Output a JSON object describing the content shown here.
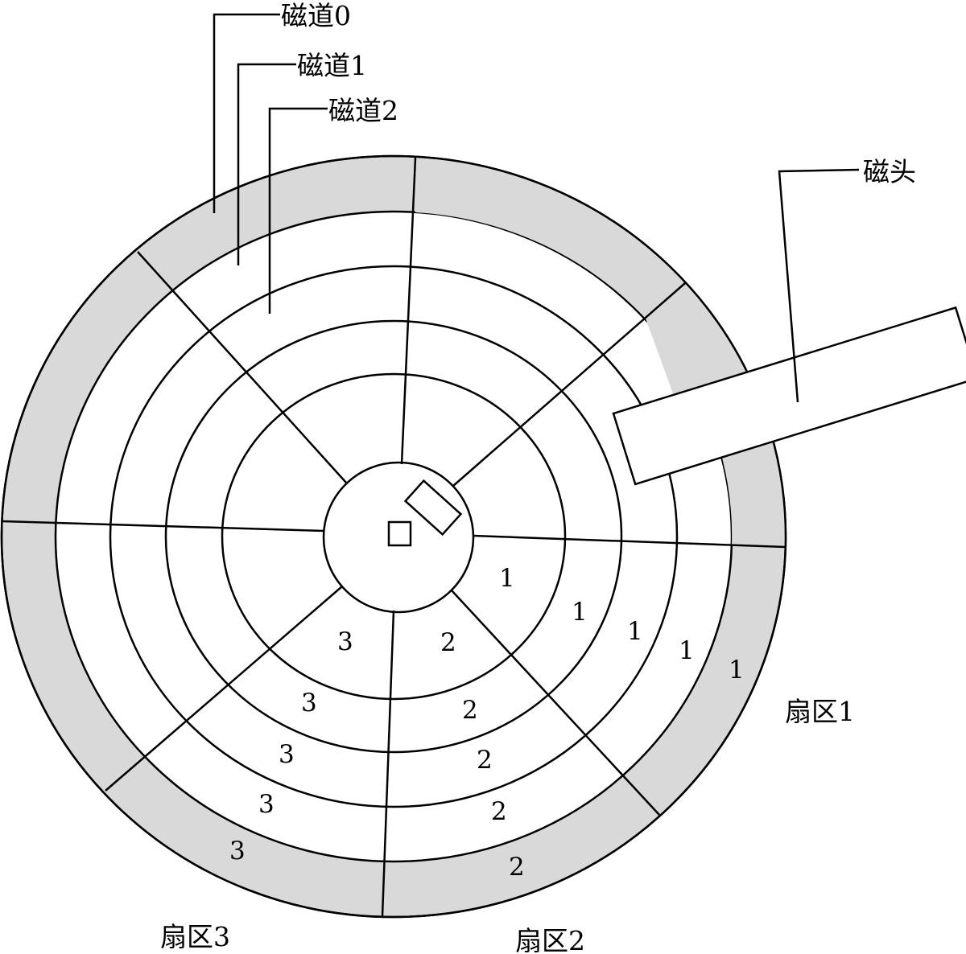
{
  "labels": {
    "track0": "磁道0",
    "track1": "磁道1",
    "track2": "磁道2",
    "head": "磁头",
    "sector1": "扇区1",
    "sector2": "扇区2",
    "sector3": "扇区3"
  },
  "sector_numbers": {
    "sector1": [
      "1",
      "1",
      "1",
      "1",
      "1"
    ],
    "sector2": [
      "2",
      "2",
      "2",
      "2",
      "2"
    ],
    "sector3": [
      "3",
      "3",
      "3",
      "3",
      "3"
    ]
  },
  "colors": {
    "shaded_track": "#d9d9d9",
    "line": "#000000",
    "background": "#ffffff"
  }
}
